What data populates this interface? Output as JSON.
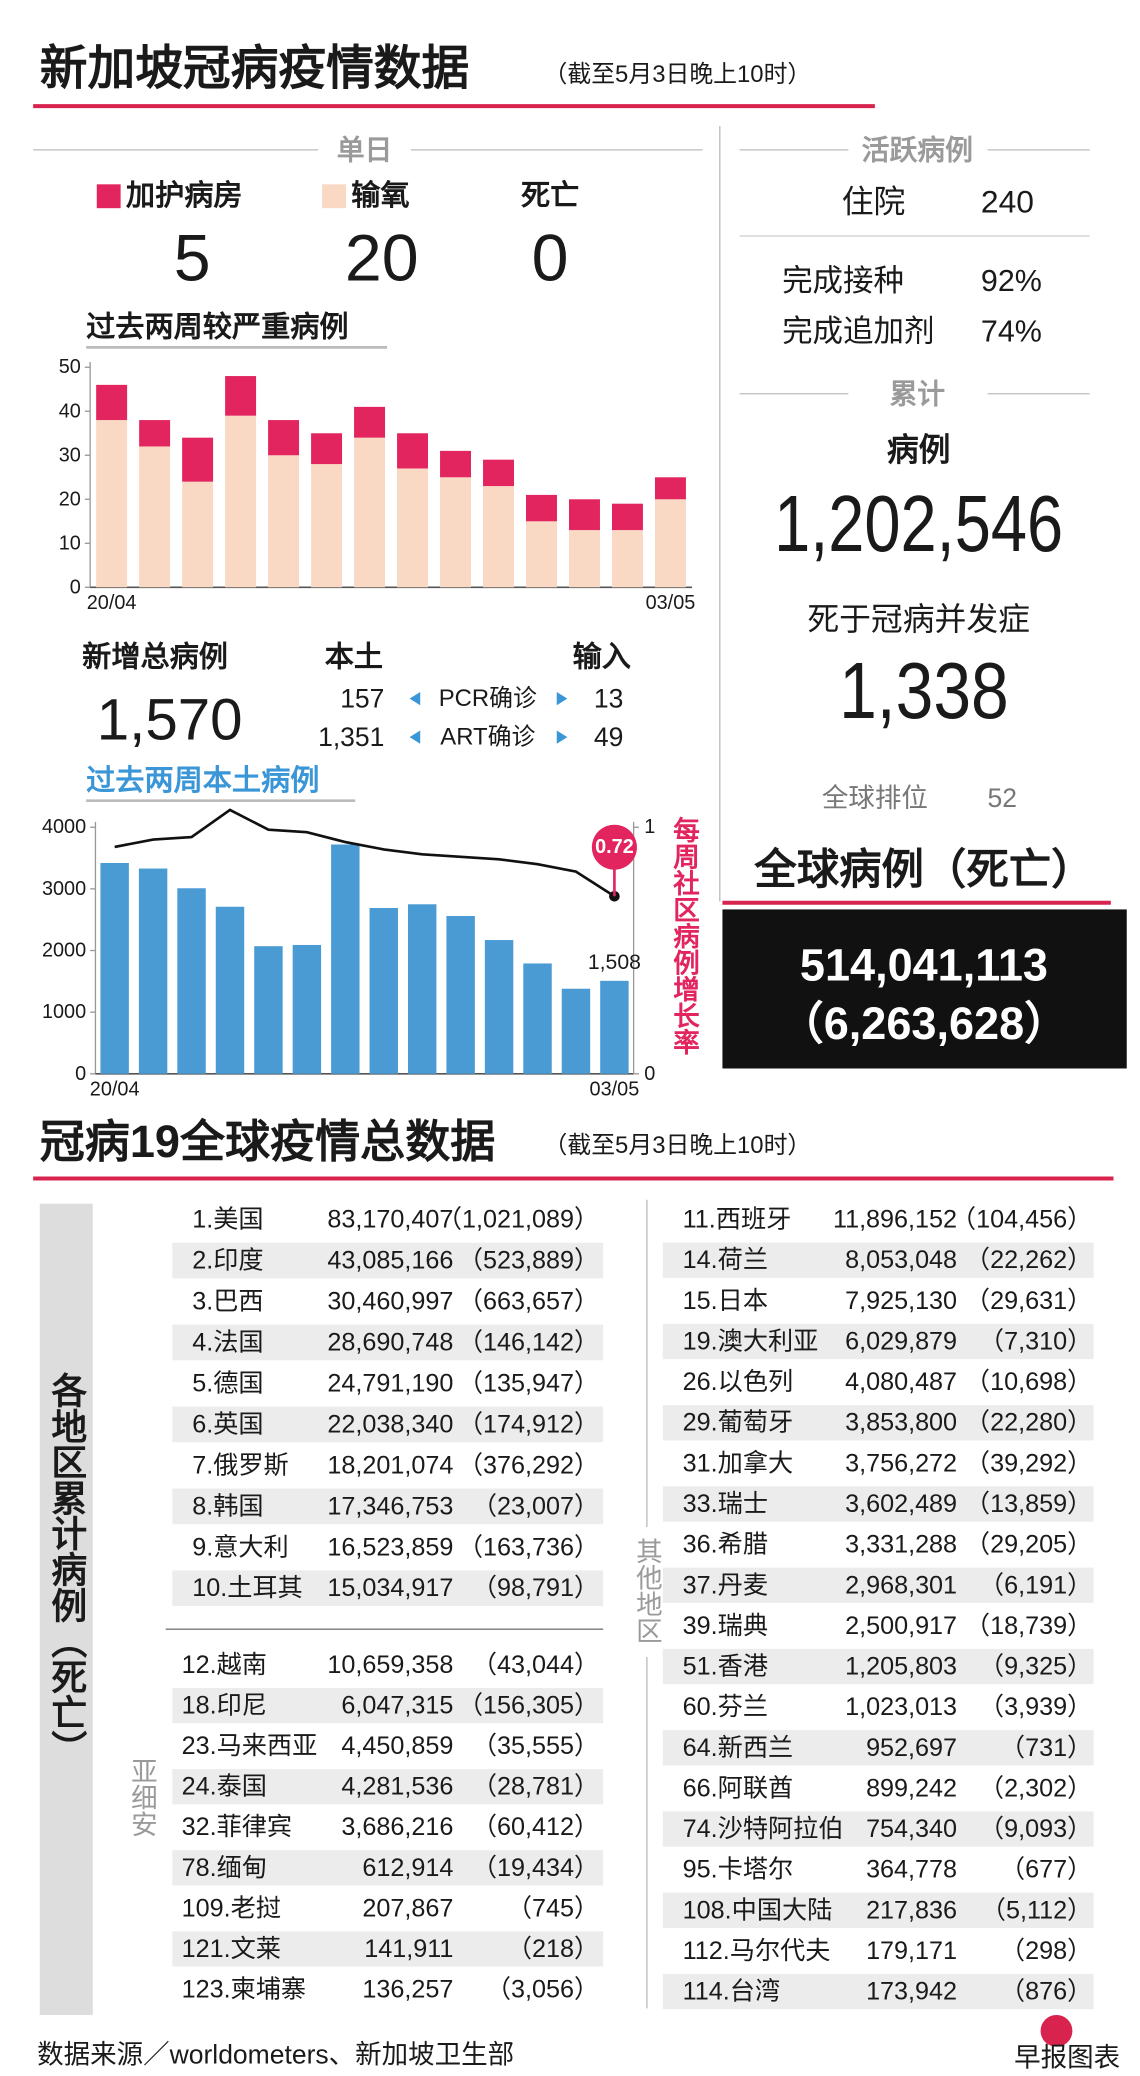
{
  "header": {
    "title": "新加坡冠病疫情数据",
    "subtitle": "（截至5月3日晚上10时）"
  },
  "daily": {
    "heading": "单日",
    "death_label": "死亡",
    "values": [
      "5",
      "20",
      "0"
    ]
  },
  "chart_data": [
    {
      "type": "bar",
      "stacked": true,
      "title": "过去两周较严重病例",
      "categories": [
        "20/04",
        null,
        null,
        null,
        null,
        null,
        null,
        null,
        null,
        null,
        null,
        null,
        null,
        "03/05"
      ],
      "series": [
        {
          "name": "输氧",
          "color": "#f9d8c4",
          "values": [
            38,
            32,
            24,
            39,
            30,
            28,
            34,
            27,
            25,
            23,
            15,
            13,
            13,
            20
          ]
        },
        {
          "name": "加护病房",
          "color": "#e2245f",
          "values": [
            8,
            6,
            10,
            9,
            8,
            7,
            7,
            8,
            6,
            6,
            6,
            7,
            6,
            5
          ]
        }
      ],
      "ylim": [
        0,
        50
      ],
      "yticks": [
        0,
        10,
        20,
        30,
        40,
        50
      ],
      "grid": false
    },
    {
      "type": "bar",
      "title": "过去两周本土病例",
      "categories": [
        "20/04",
        null,
        null,
        null,
        null,
        null,
        null,
        null,
        null,
        null,
        null,
        null,
        null,
        "03/05"
      ],
      "series": [
        {
          "color": "#4a9bd4",
          "values": [
            3420,
            3330,
            3010,
            2710,
            2070,
            2090,
            3720,
            2690,
            2750,
            2560,
            2170,
            1790,
            1380,
            1508
          ],
          "value_labels": [
            null,
            null,
            null,
            null,
            null,
            null,
            null,
            null,
            null,
            null,
            null,
            null,
            null,
            "1,508"
          ]
        },
        {
          "name": "每周社区病例增长率",
          "type": "line",
          "axis": "y2",
          "color": "#111111",
          "label_last": true,
          "values": [
            0.92,
            0.95,
            0.96,
            1.07,
            0.99,
            0.98,
            0.94,
            0.91,
            0.89,
            0.88,
            0.87,
            0.85,
            0.82,
            0.72
          ]
        }
      ],
      "ylim": [
        0,
        4000
      ],
      "yticks": [
        0,
        1000,
        2000,
        3000,
        4000
      ],
      "y2lim": [
        0,
        1
      ],
      "y2ticks": [
        0,
        1
      ],
      "grid": false
    }
  ],
  "new_cases": {
    "total_label": "新增总病例",
    "total": "1,570",
    "local_label": "本土",
    "import_label": "输入",
    "rows": [
      [
        "157",
        "PCR确诊",
        "13"
      ],
      [
        "1,351",
        "ART确诊",
        "49"
      ]
    ]
  },
  "active": {
    "heading": "活跃病例",
    "hospital_label": "住院",
    "hospital": "240",
    "vacc_label": "完成接种",
    "vacc": "92%",
    "booster_label": "完成追加剂",
    "booster": "74%"
  },
  "cumulative": {
    "heading": "累计",
    "cases_label": "病例",
    "cases": "1,202,546",
    "deaths_label": "死于冠病并发症",
    "deaths": "1,338",
    "rank_label": "全球排位",
    "rank": "52"
  },
  "global": {
    "title": "全球病例（死亡）",
    "cases": "514,041,113",
    "deaths": "（6,263,628）"
  },
  "world": {
    "title": "冠病19全球疫情总数据",
    "subtitle": "（截至5月3日晚上10时）",
    "side_label": "各地区累计病例（死亡）",
    "top": [
      [
        "1.美国",
        "83,170,407",
        "（1,021,089）"
      ],
      [
        "2.印度",
        "43,085,166",
        "（523,889）"
      ],
      [
        "3.巴西",
        "30,460,997",
        "（663,657）"
      ],
      [
        "4.法国",
        "28,690,748",
        "（146,142）"
      ],
      [
        "5.德国",
        "24,791,190",
        "（135,947）"
      ],
      [
        "6.英国",
        "22,038,340",
        "（174,912）"
      ],
      [
        "7.俄罗斯",
        "18,201,074",
        "（376,292）"
      ],
      [
        "8.韩国",
        "17,346,753",
        "（23,007）"
      ],
      [
        "9.意大利",
        "16,523,859",
        "（163,736）"
      ],
      [
        "10.土耳其",
        "15,034,917",
        "（98,791）"
      ]
    ],
    "asean_label": "亚细安",
    "asean": [
      [
        "12.越南",
        "10,659,358",
        "（43,044）"
      ],
      [
        "18.印尼",
        "6,047,315",
        "（156,305）"
      ],
      [
        "23.马来西亚",
        "4,450,859",
        "（35,555）"
      ],
      [
        "24.泰国",
        "4,281,536",
        "（28,781）"
      ],
      [
        "32.菲律宾",
        "3,686,216",
        "（60,412）"
      ],
      [
        "78.缅甸",
        "612,914",
        "（19,434）"
      ],
      [
        "109.老挝",
        "207,867",
        "（745）"
      ],
      [
        "121.文莱",
        "141,911",
        "（218）"
      ],
      [
        "123.柬埔寨",
        "136,257",
        "（3,056）"
      ]
    ],
    "others_label": "其他地区",
    "others": [
      [
        "11.西班牙",
        "11,896,152",
        "（104,456）"
      ],
      [
        "14.荷兰",
        "8,053,048",
        "（22,262）"
      ],
      [
        "15.日本",
        "7,925,130",
        "（29,631）"
      ],
      [
        "19.澳大利亚",
        "6,029,879",
        "（7,310）"
      ],
      [
        "26.以色列",
        "4,080,487",
        "（10,698）"
      ],
      [
        "29.葡萄牙",
        "3,853,800",
        "（22,280）"
      ],
      [
        "31.加拿大",
        "3,756,272",
        "（39,292）"
      ],
      [
        "33.瑞士",
        "3,602,489",
        "（13,859）"
      ],
      [
        "36.希腊",
        "3,331,288",
        "（29,205）"
      ],
      [
        "37.丹麦",
        "2,968,301",
        "（6,191）"
      ],
      [
        "39.瑞典",
        "2,500,917",
        "（18,739）"
      ],
      [
        "51.香港",
        "1,205,803",
        "（9,325）"
      ],
      [
        "60.芬兰",
        "1,023,013",
        "（3,939）"
      ],
      [
        "64.新西兰",
        "952,697",
        "（731）"
      ],
      [
        "66.阿联酋",
        "899,242",
        "（2,302）"
      ],
      [
        "74.沙特阿拉伯",
        "754,340",
        "（9,093）"
      ],
      [
        "95.卡塔尔",
        "364,778",
        "（677）"
      ],
      [
        "108.中国大陆",
        "217,836",
        "（5,112）"
      ],
      [
        "112.马尔代夫",
        "179,171",
        "（298）"
      ],
      [
        "114.台湾",
        "173,942",
        "（876）"
      ]
    ]
  },
  "footer": {
    "source": "数据来源／worldometers、新加坡卫生部",
    "credit": "早报图表"
  }
}
